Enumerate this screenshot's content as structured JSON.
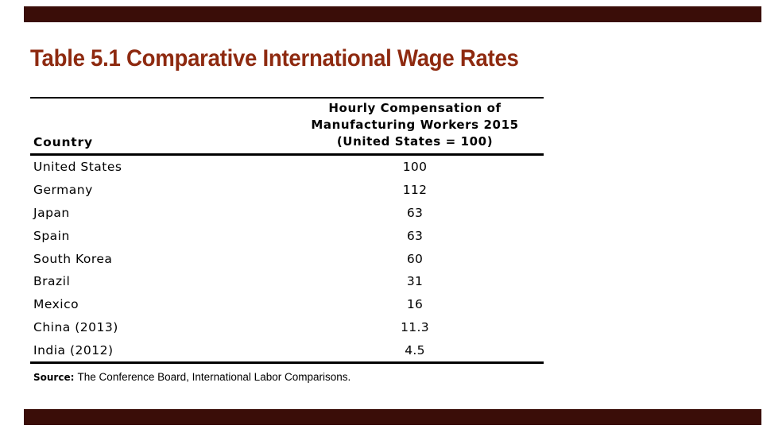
{
  "colors": {
    "accent_bar": "#3A0D08",
    "title": "#8E2A10",
    "text": "#000000",
    "background": "#FFFFFF"
  },
  "title": {
    "text": "Table 5.1 Comparative International Wage Rates"
  },
  "table": {
    "col1_header": "Country",
    "col2_header_lines": [
      "Hourly Compensation of",
      "Manufacturing Workers 2015",
      "(United States = 100)"
    ],
    "rows": [
      {
        "country": "United States",
        "value": "100"
      },
      {
        "country": "Germany",
        "value": "112"
      },
      {
        "country": "Japan",
        "value": "63"
      },
      {
        "country": "Spain",
        "value": "63"
      },
      {
        "country": "South Korea",
        "value": "60"
      },
      {
        "country": "Brazil",
        "value": "31"
      },
      {
        "country": "Mexico",
        "value": "16"
      },
      {
        "country": "China (2013)",
        "value": "11.3"
      },
      {
        "country": "India (2012)",
        "value": "4.5"
      }
    ]
  },
  "source": {
    "label": "Source:",
    "text": "The Conference Board, International Labor Comparisons."
  }
}
